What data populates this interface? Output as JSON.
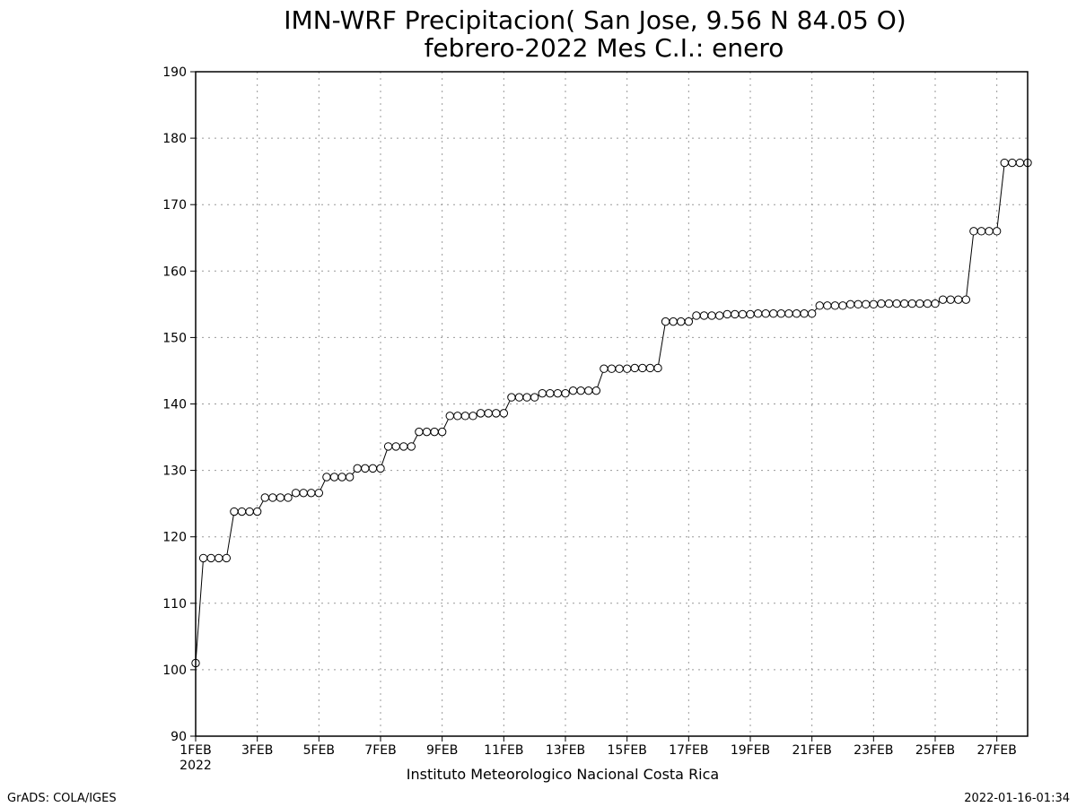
{
  "chart_data": {
    "type": "line",
    "title": "IMN-WRF  Precipitacion( San Jose, 9.56  N 84.05  O)",
    "subtitle": "febrero-2022 Mes C.I.: enero",
    "xlabel": "",
    "ylabel": "",
    "ylim": [
      90,
      190
    ],
    "xlim": [
      1,
      28
    ],
    "yticks": [
      90,
      100,
      110,
      120,
      130,
      140,
      150,
      160,
      170,
      180,
      190
    ],
    "xticks": [
      {
        "day": 1,
        "label": "1FEB"
      },
      {
        "day": 3,
        "label": "3FEB"
      },
      {
        "day": 5,
        "label": "5FEB"
      },
      {
        "day": 7,
        "label": "7FEB"
      },
      {
        "day": 9,
        "label": "9FEB"
      },
      {
        "day": 11,
        "label": "11FEB"
      },
      {
        "day": 13,
        "label": "13FEB"
      },
      {
        "day": 15,
        "label": "15FEB"
      },
      {
        "day": 17,
        "label": "17FEB"
      },
      {
        "day": 19,
        "label": "19FEB"
      },
      {
        "day": 21,
        "label": "21FEB"
      },
      {
        "day": 23,
        "label": "23FEB"
      },
      {
        "day": 25,
        "label": "25FEB"
      },
      {
        "day": 27,
        "label": "27FEB"
      }
    ],
    "year_label": "2022",
    "grid": true,
    "series": [
      {
        "values": [
          101.0,
          116.8,
          116.8,
          116.8,
          116.8,
          123.8,
          123.8,
          123.8,
          123.8,
          125.9,
          125.9,
          125.9,
          125.9,
          126.6,
          126.6,
          126.6,
          126.6,
          129.0,
          129.0,
          129.0,
          129.0,
          130.3,
          130.3,
          130.3,
          130.3,
          133.6,
          133.6,
          133.6,
          133.6,
          135.8,
          135.8,
          135.8,
          135.8,
          138.2,
          138.2,
          138.2,
          138.2,
          138.6,
          138.6,
          138.6,
          138.6,
          141.0,
          141.0,
          141.0,
          141.0,
          141.6,
          141.6,
          141.6,
          141.6,
          142.0,
          142.0,
          142.0,
          142.0,
          145.3,
          145.3,
          145.3,
          145.3,
          145.4,
          145.4,
          145.4,
          145.4,
          152.4,
          152.4,
          152.4,
          152.4,
          153.3,
          153.3,
          153.3,
          153.3,
          153.5,
          153.5,
          153.5,
          153.5,
          153.6,
          153.6,
          153.6,
          153.6,
          153.6,
          153.6,
          153.6,
          153.6,
          154.8,
          154.8,
          154.8,
          154.8,
          155.0,
          155.0,
          155.0,
          155.0,
          155.1,
          155.1,
          155.1,
          155.1,
          155.1,
          155.1,
          155.1,
          155.1,
          155.7,
          155.7,
          155.7,
          155.7,
          166.0,
          166.0,
          166.0,
          166.0,
          176.3,
          176.3,
          176.3,
          176.3
        ]
      }
    ]
  },
  "footer": {
    "institution": "Instituto Meteorologico Nacional Costa Rica",
    "grads_credit": "GrADS: COLA/IGES",
    "timestamp": "2022-01-16-01:34"
  },
  "colors": {
    "line": "#000000",
    "marker_fill": "#ffffff",
    "grid": "#999999"
  }
}
